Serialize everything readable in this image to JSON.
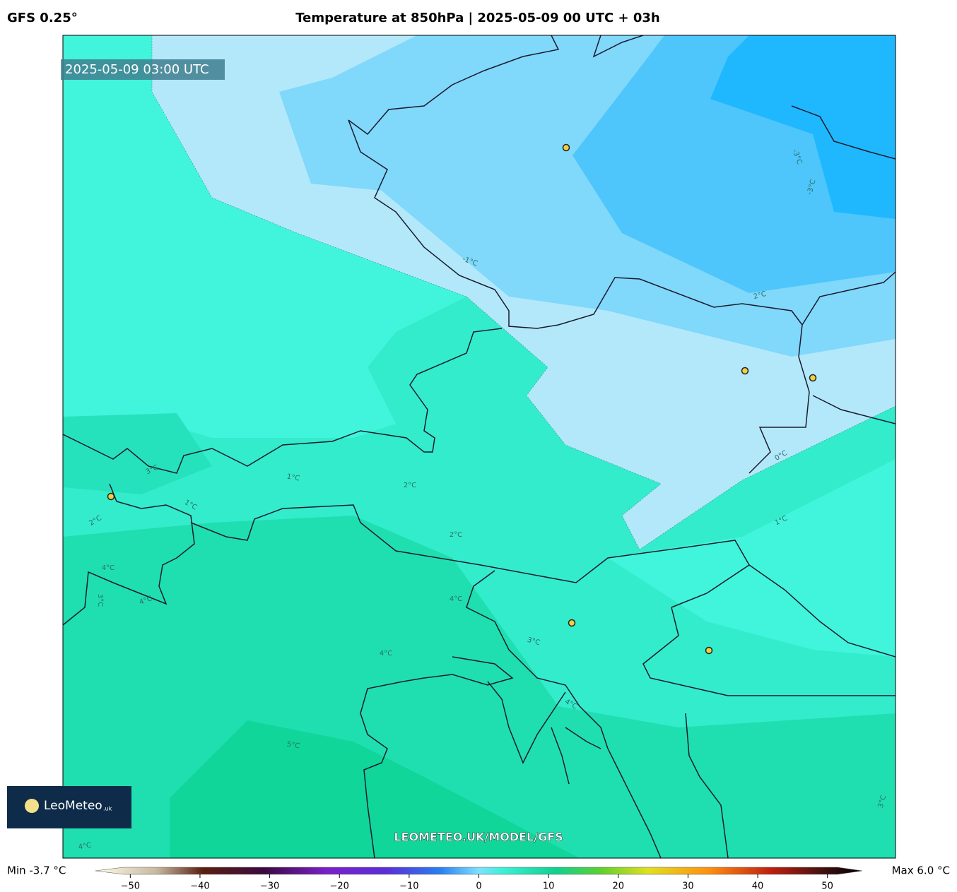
{
  "header": {
    "model": "GFS 0.25°",
    "title": "Temperature at 850hPa | 2025-05-09 00 UTC + 03h"
  },
  "map": {
    "valid_time": "2025-05-09 03:00 UTC",
    "watermark": "LEOMETEO.UK/MODEL/GFS",
    "logo": {
      "name": "LeoMeteo",
      "suffix": ".uk"
    },
    "contour_labels": [
      "-1°C",
      "2°C",
      "-3°C",
      "-3°C",
      "0°C",
      "1°C",
      "3°C",
      "1°C",
      "2°C",
      "1°C",
      "2°C",
      "2°C",
      "4°C",
      "3°C",
      "4°C",
      "4°C",
      "3°C",
      "4°C",
      "4°C",
      "5°C",
      "3°C",
      "4°C"
    ]
  },
  "colorbar": {
    "min_label": "Min -3.7 °C",
    "max_label": "Max 6.0 °C",
    "lim": [
      -55,
      55
    ],
    "ticks": [
      {
        "value": -50,
        "label": "−50"
      },
      {
        "value": -40,
        "label": "−40"
      },
      {
        "value": -30,
        "label": "−30"
      },
      {
        "value": -20,
        "label": "−20"
      },
      {
        "value": -10,
        "label": "−10"
      },
      0,
      10,
      20,
      30,
      40,
      50
    ]
  }
}
